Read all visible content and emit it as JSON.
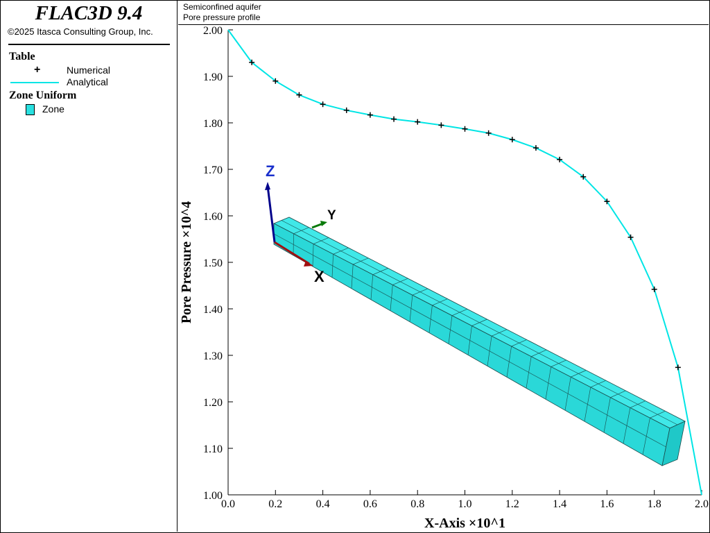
{
  "app": {
    "title": "FLAC3D 9.4",
    "copyright": "©2025 Itasca Consulting Group, Inc."
  },
  "header": {
    "line1": "Semiconfined aquifer",
    "line2": "Pore pressure profile"
  },
  "legend": {
    "table_heading": "Table",
    "numerical_label": "Numerical",
    "analytical_label": "Analytical",
    "zone_heading": "Zone Uniform",
    "zone_label": "Zone",
    "zone_color": "#29e0e0"
  },
  "triad": {
    "x_label": "X",
    "y_label": "Y",
    "z_label": "Z",
    "x_color": "#a01010",
    "y_color": "#0a7a0a",
    "z_color": "#00008b"
  },
  "chart_data": {
    "type": "line",
    "xlabel": "X-Axis ×10^1",
    "ylabel": "Pore Pressure ×10^4",
    "xlim": [
      0,
      2.0
    ],
    "ylim": [
      1.0,
      2.0
    ],
    "x_ticks": [
      "0.0",
      "0.2",
      "0.4",
      "0.6",
      "0.8",
      "1.0",
      "1.2",
      "1.4",
      "1.6",
      "1.8",
      "2.0"
    ],
    "y_ticks": [
      "1.00",
      "1.10",
      "1.20",
      "1.30",
      "1.40",
      "1.50",
      "1.60",
      "1.70",
      "1.80",
      "1.90",
      "2.00"
    ],
    "series": [
      {
        "name": "Analytical",
        "style": "line",
        "color": "#00e5e5",
        "x": [
          0.0,
          0.1,
          0.2,
          0.3,
          0.4,
          0.5,
          0.6,
          0.7,
          0.8,
          0.9,
          1.0,
          1.1,
          1.2,
          1.3,
          1.4,
          1.5,
          1.6,
          1.7,
          1.8,
          1.9,
          2.0
        ],
        "y": [
          2.0,
          1.93,
          1.89,
          1.86,
          1.84,
          1.827,
          1.817,
          1.808,
          1.802,
          1.795,
          1.787,
          1.778,
          1.764,
          1.746,
          1.721,
          1.684,
          1.631,
          1.554,
          1.442,
          1.274,
          1.0
        ]
      },
      {
        "name": "Numerical",
        "style": "marker-plus",
        "color": "#000000",
        "x": [
          0.1,
          0.2,
          0.3,
          0.4,
          0.5,
          0.6,
          0.7,
          0.8,
          0.9,
          1.0,
          1.1,
          1.2,
          1.3,
          1.4,
          1.5,
          1.6,
          1.7,
          1.8,
          1.9
        ],
        "y": [
          1.93,
          1.89,
          1.86,
          1.84,
          1.827,
          1.817,
          1.808,
          1.802,
          1.795,
          1.787,
          1.778,
          1.764,
          1.746,
          1.721,
          1.684,
          1.631,
          1.554,
          1.442,
          1.274
        ]
      }
    ]
  }
}
